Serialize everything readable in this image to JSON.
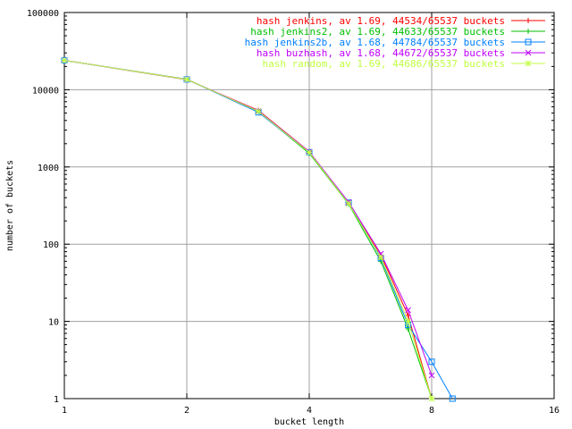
{
  "chart_data": {
    "type": "line",
    "title": "",
    "xlabel": "bucket length",
    "ylabel": "number of buckets",
    "x_scale": "log2",
    "y_scale": "log10",
    "xlim": [
      1,
      16
    ],
    "ylim": [
      1,
      100000
    ],
    "x_ticks": [
      "1",
      "2",
      "4",
      "8",
      "16"
    ],
    "y_ticks": [
      "1",
      "10",
      "100",
      "1000",
      "10000",
      "100000"
    ],
    "grid": true,
    "legend_position": "top-right",
    "series": [
      {
        "name": "hash jenkins, av 1.69, 44534/65537 buckets",
        "color": "#ff0000",
        "marker": "plus",
        "points": [
          [
            1,
            24000
          ],
          [
            2,
            13500
          ],
          [
            3,
            5400
          ],
          [
            4,
            1580
          ],
          [
            5,
            340
          ],
          [
            6,
            72
          ],
          [
            7,
            12
          ],
          [
            8,
            1
          ]
        ]
      },
      {
        "name": "hash jenkins2, av 1.69, 44633/65537 buckets",
        "color": "#00c000",
        "marker": "plus",
        "points": [
          [
            1,
            24000
          ],
          [
            2,
            13700
          ],
          [
            3,
            5200
          ],
          [
            4,
            1500
          ],
          [
            5,
            330
          ],
          [
            6,
            60
          ],
          [
            7,
            8
          ],
          [
            8,
            1
          ]
        ]
      },
      {
        "name": "hash jenkins2b, av 1.68, 44784/65537 buckets",
        "color": "#0080ff",
        "marker": "square",
        "points": [
          [
            1,
            24000
          ],
          [
            2,
            13600
          ],
          [
            3,
            5100
          ],
          [
            4,
            1550
          ],
          [
            5,
            345
          ],
          [
            6,
            66
          ],
          [
            7,
            9
          ],
          [
            8,
            3
          ],
          [
            9,
            1
          ]
        ]
      },
      {
        "name": "hash buzhash, av 1.68, 44672/65537 buckets",
        "color": "#c000ff",
        "marker": "x",
        "points": [
          [
            1,
            24000
          ],
          [
            2,
            13600
          ],
          [
            3,
            5300
          ],
          [
            4,
            1570
          ],
          [
            5,
            350
          ],
          [
            6,
            75
          ],
          [
            7,
            14
          ],
          [
            8,
            2
          ]
        ]
      },
      {
        "name": "hash random, av 1.69, 44686/65537 buckets",
        "color": "#c0ff40",
        "marker": "star",
        "points": [
          [
            1,
            24000
          ],
          [
            2,
            13600
          ],
          [
            3,
            5250
          ],
          [
            4,
            1540
          ],
          [
            5,
            335
          ],
          [
            6,
            68
          ],
          [
            7,
            10
          ],
          [
            8,
            1
          ]
        ]
      }
    ]
  }
}
